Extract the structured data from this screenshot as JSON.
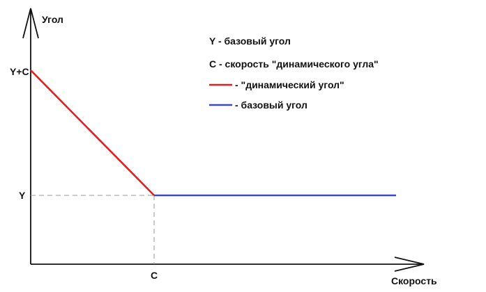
{
  "axes": {
    "y_label": "Угол",
    "x_label": "Скорость",
    "y_tick_top": "Y+C",
    "y_tick_mid": "Y",
    "x_tick": "C"
  },
  "legend": {
    "line1": "Y - базовый угол",
    "line2": "C - скорость \"динамического угла\"",
    "red_entry": "- \"динамический угол\"",
    "blue_entry": "- базовый угол"
  },
  "colors": {
    "dynamic_line": "#e02020",
    "base_line": "#3b48c6",
    "axis": "#111111",
    "guide": "#999999"
  }
}
